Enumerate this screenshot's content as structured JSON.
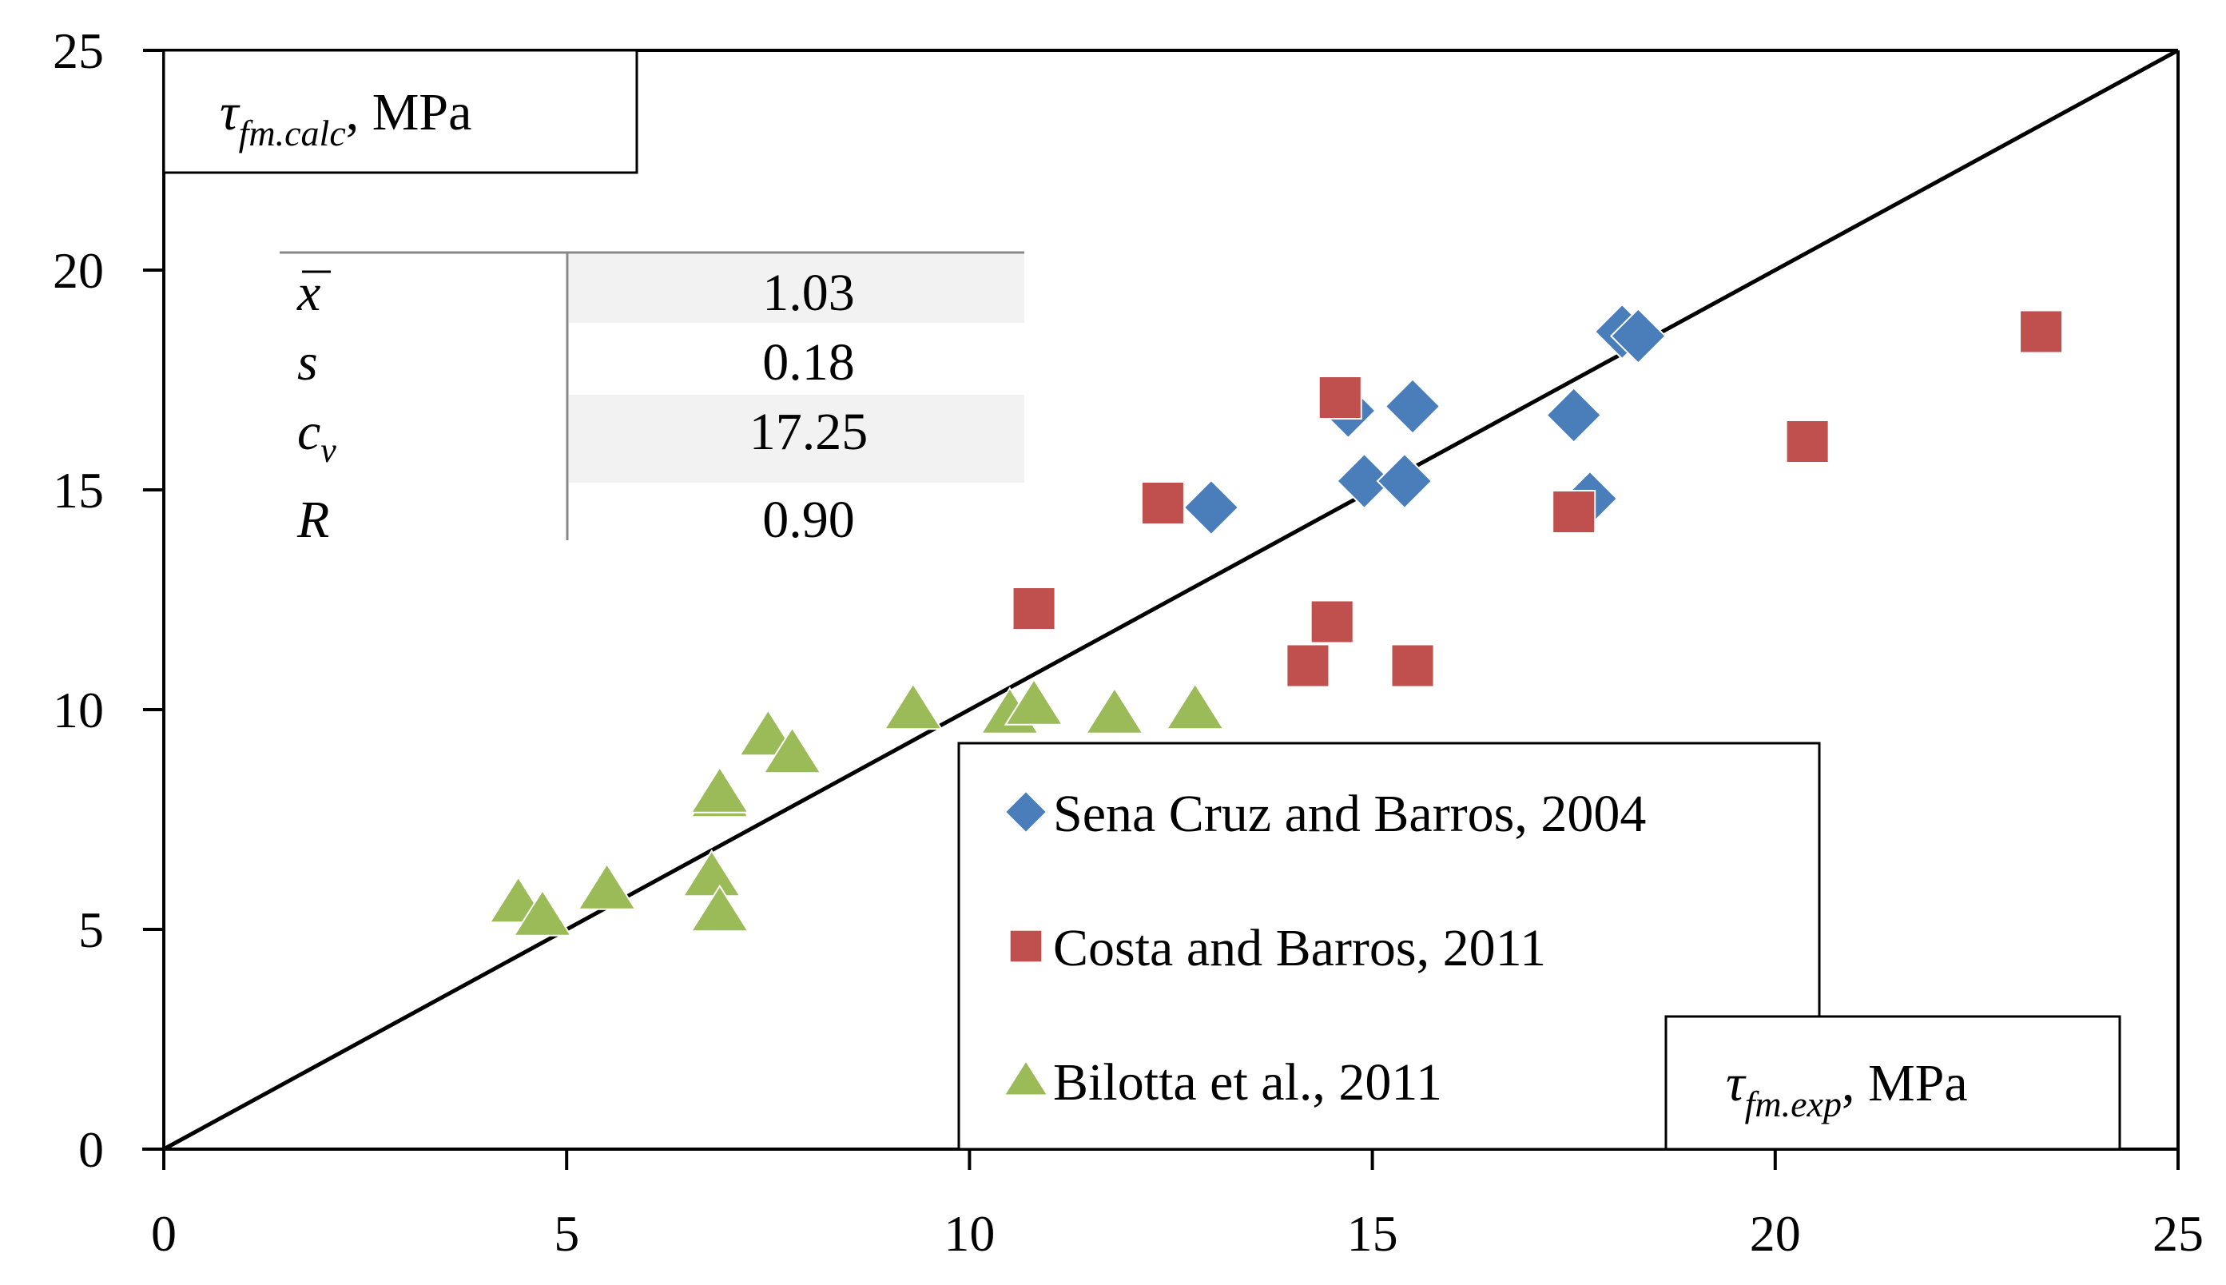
{
  "chart_data": {
    "type": "scatter",
    "title": "",
    "xlabel": {
      "symbol": "τ",
      "sub": "fm.exp",
      "unit": ", MPa"
    },
    "ylabel": {
      "symbol": "τ",
      "sub": "fm.calc",
      "unit": ", MPa"
    },
    "xlim": [
      0,
      25
    ],
    "ylim": [
      0,
      25
    ],
    "xticks": [
      "0",
      "5",
      "10",
      "15",
      "20",
      "25"
    ],
    "yticks": [
      "0",
      "5",
      "10",
      "15",
      "20",
      "25"
    ],
    "reference_line": {
      "from": [
        0,
        0
      ],
      "to": [
        25,
        25
      ]
    },
    "series": [
      {
        "name": "Sena Cruz and Barros, 2004",
        "marker": "diamond",
        "color": "#4a7ebb",
        "points": [
          [
            13.0,
            14.6
          ],
          [
            14.7,
            16.8
          ],
          [
            15.5,
            16.9
          ],
          [
            14.9,
            15.2
          ],
          [
            15.4,
            15.2
          ],
          [
            17.5,
            16.7
          ],
          [
            17.7,
            14.8
          ],
          [
            18.1,
            18.6
          ],
          [
            18.3,
            18.5
          ]
        ]
      },
      {
        "name": "Costa and Barros, 2011",
        "marker": "square",
        "color": "#c0504d",
        "points": [
          [
            10.8,
            12.3
          ],
          [
            12.4,
            14.7
          ],
          [
            14.2,
            11.0
          ],
          [
            14.5,
            12.0
          ],
          [
            14.6,
            17.1
          ],
          [
            15.5,
            11.0
          ],
          [
            17.5,
            14.5
          ],
          [
            20.4,
            16.1
          ],
          [
            23.3,
            18.6
          ]
        ]
      },
      {
        "name": "Bilotta et al., 2011",
        "marker": "triangle",
        "color": "#9bbb59",
        "points": [
          [
            4.4,
            5.6
          ],
          [
            4.7,
            5.3
          ],
          [
            5.5,
            5.9
          ],
          [
            6.8,
            6.2
          ],
          [
            6.9,
            8.0
          ],
          [
            6.9,
            8.1
          ],
          [
            6.9,
            5.4
          ],
          [
            7.5,
            9.4
          ],
          [
            7.8,
            9.0
          ],
          [
            9.3,
            10.0
          ],
          [
            10.5,
            9.9
          ],
          [
            10.8,
            10.1
          ],
          [
            11.8,
            9.9
          ],
          [
            12.8,
            10.0
          ]
        ]
      }
    ],
    "stats": [
      {
        "symbol": "x",
        "sub": "",
        "overline": true,
        "value": "1.03",
        "shaded": true
      },
      {
        "symbol": "s",
        "sub": "",
        "overline": false,
        "value": "0.18",
        "shaded": false
      },
      {
        "symbol": "c",
        "sub": "v",
        "overline": false,
        "value": "17.25",
        "shaded": true
      },
      {
        "symbol": "R",
        "sub": "",
        "overline": false,
        "value": "0.90",
        "shaded": false
      }
    ],
    "legend_position": "bottom-center"
  },
  "colors": {
    "axis": "#000000",
    "shade": "#f2f2f2"
  }
}
